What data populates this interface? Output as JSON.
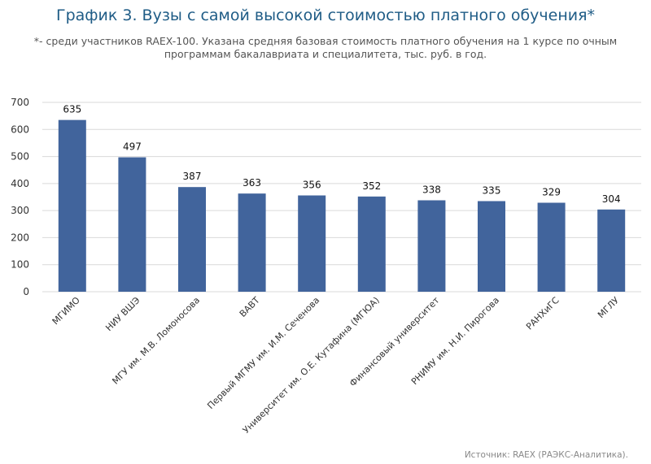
{
  "header": {
    "title": "График 3. Вузы с самой высокой стоимостью платного обучения*",
    "subtitle": "*- среди участников RAEX-100. Указана средняя базовая стоимость платного обучения на 1 курсе по очным программам бакалавриата и специалитета, тыс. руб. в год."
  },
  "footer": {
    "source": "Источник: RAEX (РАЭКС-Аналитика)."
  },
  "chart_data": {
    "type": "bar",
    "title": "График 3. Вузы с самой высокой стоимостью платного обучения*",
    "xlabel": "",
    "ylabel": "",
    "categories": [
      "МГИМО",
      "НИУ ВШЭ",
      "МГУ им. М.В. Ломоносова",
      "ВАВТ",
      "Первый МГМУ им. И.М. Сеченова",
      "Университет им. О.Е. Кутафина (МГЮА)",
      "Финансовый университет",
      "РНИМУ им. Н.И. Пирогова",
      "РАНХиГС",
      "МГЛУ"
    ],
    "values": [
      635,
      497,
      387,
      363,
      356,
      352,
      338,
      335,
      329,
      304
    ],
    "data_labels": [
      "635",
      "497",
      "387",
      "363",
      "356",
      "352",
      "338",
      "335",
      "329",
      "304"
    ],
    "ylim": [
      0,
      700
    ],
    "yticks": [
      0,
      100,
      200,
      300,
      400,
      500,
      600,
      700
    ],
    "ytick_labels": [
      "0",
      "100",
      "200",
      "300",
      "400",
      "500",
      "600",
      "700"
    ],
    "grid": true,
    "legend": "none",
    "bar_color": "#41649c",
    "grid_color": "#d9d9d9"
  }
}
